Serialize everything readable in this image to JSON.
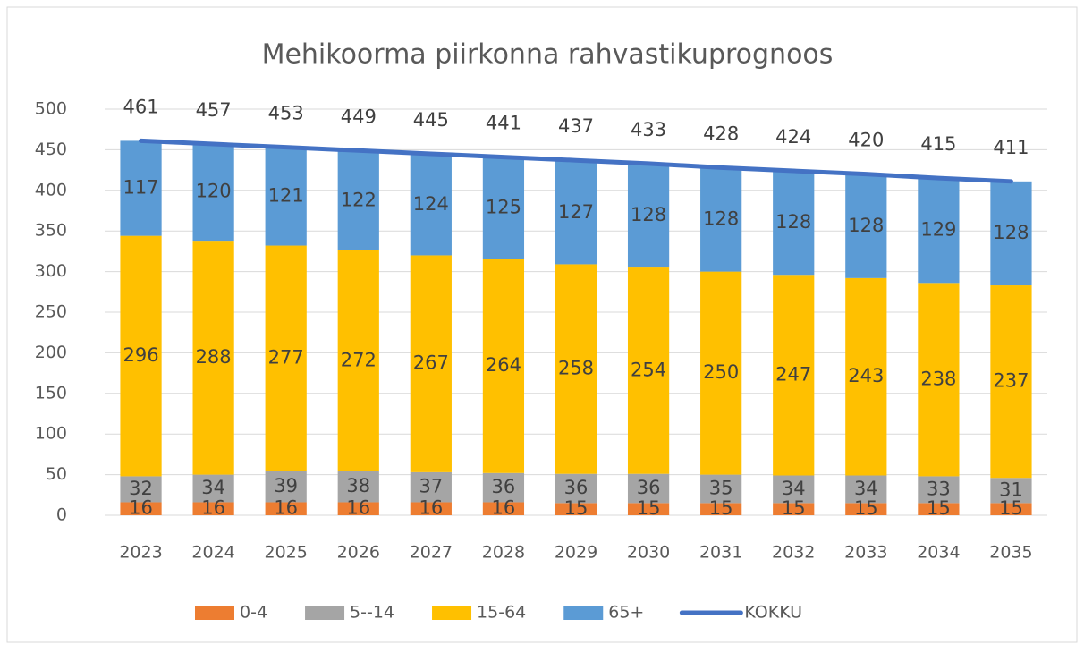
{
  "chart_data": {
    "type": "bar",
    "stacked": true,
    "title": "Mehikoorma piirkonna rahvastikuprognoos",
    "categories": [
      "2023",
      "2024",
      "2025",
      "2026",
      "2027",
      "2028",
      "2029",
      "2030",
      "2031",
      "2032",
      "2033",
      "2034",
      "2035"
    ],
    "series": [
      {
        "name": "0-4",
        "color": "#ED7D31",
        "values": [
          16,
          16,
          16,
          16,
          16,
          16,
          15,
          15,
          15,
          15,
          15,
          15,
          15
        ]
      },
      {
        "name": "5--14",
        "color": "#A5A5A5",
        "values": [
          32,
          34,
          39,
          38,
          37,
          36,
          36,
          36,
          35,
          34,
          34,
          33,
          31
        ]
      },
      {
        "name": "15-64",
        "color": "#FFC000",
        "values": [
          296,
          288,
          277,
          272,
          267,
          264,
          258,
          254,
          250,
          247,
          243,
          238,
          237
        ]
      },
      {
        "name": "65+",
        "color": "#5B9BD5",
        "values": [
          117,
          120,
          121,
          122,
          124,
          125,
          127,
          128,
          128,
          128,
          128,
          129,
          128
        ]
      },
      {
        "name": "KOKKU",
        "color": "#4472C4",
        "type": "line",
        "values": [
          461,
          457,
          453,
          449,
          445,
          441,
          437,
          433,
          428,
          424,
          420,
          415,
          411
        ]
      }
    ],
    "ylim": [
      0,
      500
    ],
    "yticks": [
      0,
      50,
      100,
      150,
      200,
      250,
      300,
      350,
      400,
      450,
      500
    ],
    "grid": true,
    "legend": "bottom"
  }
}
